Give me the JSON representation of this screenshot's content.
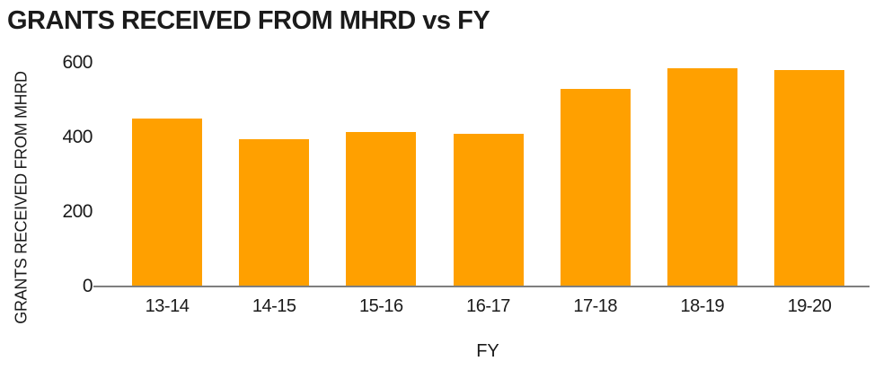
{
  "chart_data": {
    "type": "bar",
    "title": "GRANTS RECEIVED FROM MHRD vs FY",
    "xlabel": "FY",
    "ylabel": "GRANTS RECEIVED FROM MHRD",
    "categories": [
      "13-14",
      "14-15",
      "15-16",
      "16-17",
      "17-18",
      "18-19",
      "19-20"
    ],
    "values": [
      450,
      395,
      415,
      410,
      530,
      585,
      580
    ],
    "yticks": [
      0,
      200,
      400,
      600
    ],
    "ylim": [
      0,
      600
    ],
    "grid": false,
    "legend_position": "none",
    "colors": {
      "bar": "#FFA000",
      "text": "#1A1A1A",
      "axis_line": "#7F7F7F",
      "background": "#FFFFFF"
    }
  }
}
